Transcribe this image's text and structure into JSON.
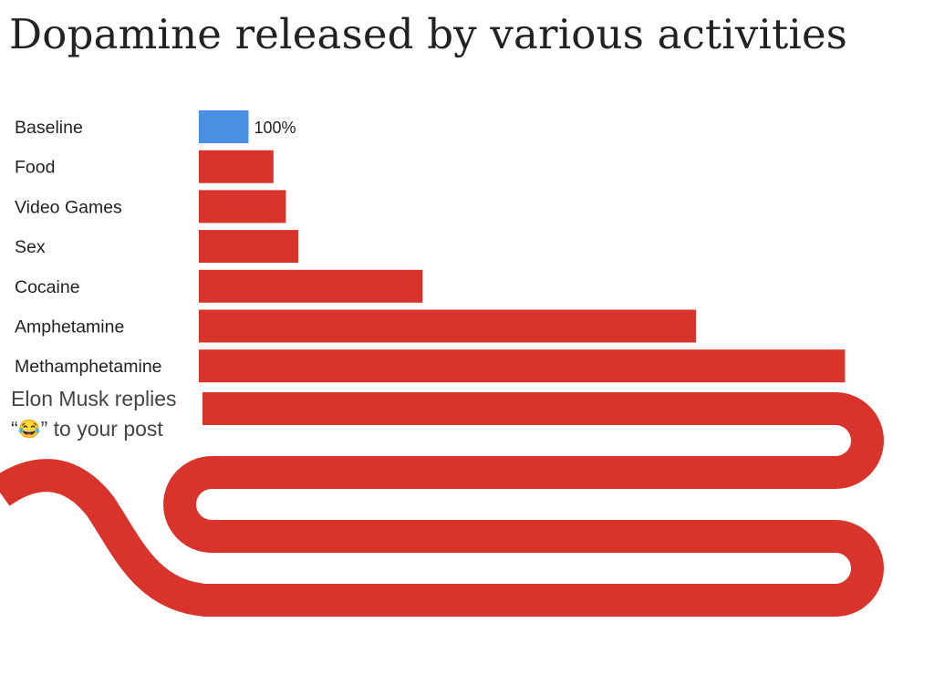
{
  "title": "Dopamine released by various activities",
  "chart_data": {
    "type": "bar",
    "orientation": "horizontal",
    "title": "Dopamine released by various activities",
    "xlabel": "",
    "ylabel": "",
    "unit": "%",
    "grid": false,
    "legend": "none",
    "categories": [
      "Baseline",
      "Food",
      "Video Games",
      "Sex",
      "Cocaine",
      "Amphetamine",
      "Methamphetamine"
    ],
    "values": [
      100,
      150,
      175,
      200,
      450,
      1000,
      1300
    ],
    "data_labels": [
      "100%",
      "",
      "",
      "",
      "",
      "",
      ""
    ],
    "bar_colors": [
      "#4a90e2",
      "#d9342b",
      "#d9342b",
      "#d9342b",
      "#d9342b",
      "#d9342b",
      "#d9342b"
    ],
    "meme_bar": {
      "label_line1": "Elon Musk replies",
      "label_line2": "“😂” to your post",
      "quote_open": "“",
      "emoji": "😂",
      "label_rest": "” to your post",
      "color": "#d9342b",
      "shape": "serpentine, overflows chart"
    }
  }
}
